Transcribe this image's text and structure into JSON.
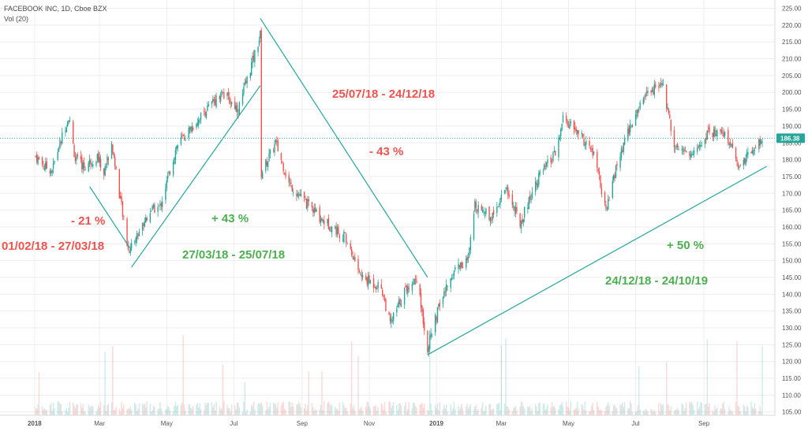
{
  "header": {
    "symbol": "FACEBOOK INC, 1D, Cboe BZX",
    "volume_label": "Vol (20)"
  },
  "colors": {
    "up": "#26a69a",
    "down": "#ef5350",
    "annotation_red": "#ef5350",
    "annotation_green": "#4caf50",
    "trendline": "#26a69a",
    "last_price_badge": "#26a69a",
    "grid": "#eeeeee"
  },
  "chart_data": {
    "type": "candlestick",
    "title": "FACEBOOK INC, 1D, Cboe BZX",
    "y_axis": {
      "position": "right",
      "range": [
        104,
        227
      ],
      "ticks": [
        "105.00",
        "110.00",
        "115.00",
        "120.00",
        "125.00",
        "130.00",
        "135.00",
        "140.00",
        "145.00",
        "150.00",
        "155.00",
        "160.00",
        "165.00",
        "170.00",
        "175.00",
        "180.00",
        "185.00",
        "190.00",
        "195.00",
        "200.00",
        "205.00",
        "210.00",
        "215.00",
        "220.00",
        "225.00"
      ]
    },
    "x_axis": {
      "ticks": [
        "2018",
        "Mar",
        "May",
        "Jul",
        "Sep",
        "Nov",
        "2019",
        "Mar",
        "May",
        "Jul",
        "Sep"
      ]
    },
    "last_price": "186.38",
    "grid": true,
    "series": [
      {
        "name": "Price",
        "approximate_closes": [
          {
            "x": "2018-01-02",
            "y": 181
          },
          {
            "x": "2018-01-10",
            "y": 178
          },
          {
            "x": "2018-01-17",
            "y": 177
          },
          {
            "x": "2018-01-26",
            "y": 187
          },
          {
            "x": "2018-02-01",
            "y": 193
          },
          {
            "x": "2018-02-07",
            "y": 180
          },
          {
            "x": "2018-02-15",
            "y": 178
          },
          {
            "x": "2018-02-27",
            "y": 181
          },
          {
            "x": "2018-03-05",
            "y": 176
          },
          {
            "x": "2018-03-12",
            "y": 185
          },
          {
            "x": "2018-03-20",
            "y": 168
          },
          {
            "x": "2018-03-27",
            "y": 153
          },
          {
            "x": "2018-04-05",
            "y": 158
          },
          {
            "x": "2018-04-16",
            "y": 165
          },
          {
            "x": "2018-04-25",
            "y": 166
          },
          {
            "x": "2018-05-10",
            "y": 184
          },
          {
            "x": "2018-06-01",
            "y": 193
          },
          {
            "x": "2018-06-20",
            "y": 200
          },
          {
            "x": "2018-07-05",
            "y": 195
          },
          {
            "x": "2018-07-25",
            "y": 217
          },
          {
            "x": "2018-07-26",
            "y": 176
          },
          {
            "x": "2018-08-08",
            "y": 185
          },
          {
            "x": "2018-08-20",
            "y": 173
          },
          {
            "x": "2018-09-05",
            "y": 167
          },
          {
            "x": "2018-09-20",
            "y": 162
          },
          {
            "x": "2018-10-10",
            "y": 157
          },
          {
            "x": "2018-10-25",
            "y": 145
          },
          {
            "x": "2018-11-12",
            "y": 142
          },
          {
            "x": "2018-11-20",
            "y": 131
          },
          {
            "x": "2018-12-03",
            "y": 141
          },
          {
            "x": "2018-12-14",
            "y": 145
          },
          {
            "x": "2018-12-24",
            "y": 124
          },
          {
            "x": "2019-01-04",
            "y": 137
          },
          {
            "x": "2019-01-18",
            "y": 148
          },
          {
            "x": "2019-01-30",
            "y": 150
          },
          {
            "x": "2019-02-05",
            "y": 167
          },
          {
            "x": "2019-02-20",
            "y": 163
          },
          {
            "x": "2019-03-05",
            "y": 172
          },
          {
            "x": "2019-03-18",
            "y": 161
          },
          {
            "x": "2019-04-02",
            "y": 174
          },
          {
            "x": "2019-04-20",
            "y": 182
          },
          {
            "x": "2019-04-26",
            "y": 192
          },
          {
            "x": "2019-05-10",
            "y": 188
          },
          {
            "x": "2019-05-25",
            "y": 181
          },
          {
            "x": "2019-06-04",
            "y": 164
          },
          {
            "x": "2019-06-12",
            "y": 176
          },
          {
            "x": "2019-06-25",
            "y": 189
          },
          {
            "x": "2019-07-10",
            "y": 199
          },
          {
            "x": "2019-07-25",
            "y": 203
          },
          {
            "x": "2019-08-05",
            "y": 185
          },
          {
            "x": "2019-08-20",
            "y": 181
          },
          {
            "x": "2019-09-05",
            "y": 188
          },
          {
            "x": "2019-09-20",
            "y": 188
          },
          {
            "x": "2019-10-03",
            "y": 178
          },
          {
            "x": "2019-10-15",
            "y": 183
          },
          {
            "x": "2019-10-24",
            "y": 186.38
          }
        ]
      }
    ],
    "trendlines": [
      {
        "from": {
          "x": "2018-02-20",
          "y": 172
        },
        "to": {
          "x": "2018-03-30",
          "y": 153
        }
      },
      {
        "from": {
          "x": "2018-03-30",
          "y": 148
        },
        "to": {
          "x": "2018-07-25",
          "y": 202
        }
      },
      {
        "from": {
          "x": "2018-07-25",
          "y": 222
        },
        "to": {
          "x": "2018-12-24",
          "y": 145
        }
      },
      {
        "from": {
          "x": "2018-12-24",
          "y": 122
        },
        "to": {
          "x": "2019-10-28",
          "y": 178
        }
      }
    ],
    "annotations": [
      {
        "text": "- 21 %",
        "color": "red"
      },
      {
        "text": "01/02/18 - 27/03/18",
        "color": "red"
      },
      {
        "text": "+ 43 %",
        "color": "green"
      },
      {
        "text": "27/03/18 - 25/07/18",
        "color": "green"
      },
      {
        "text": "25/07/18 - 24/12/18",
        "color": "red"
      },
      {
        "text": "- 43 %",
        "color": "red"
      },
      {
        "text": "+ 50 %",
        "color": "green"
      },
      {
        "text": "24/12/18 - 24/10/19",
        "color": "green"
      }
    ]
  }
}
